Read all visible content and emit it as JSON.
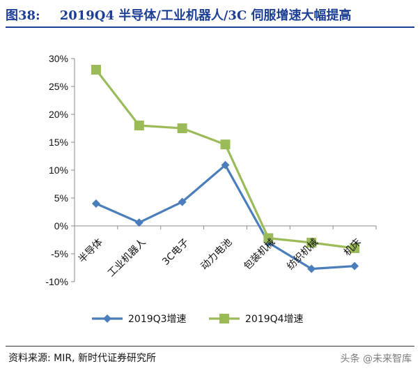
{
  "figure": {
    "label": "图38:",
    "title": "2019Q4 半导体/工业机器人/3C 伺服增速大幅提高"
  },
  "source_text": "资料来源: MIR, 新时代证券研究所",
  "watermark_text": "头条 @未来智库",
  "colors": {
    "series1": "#4a7ebb",
    "series2": "#9bbb59",
    "title": "#1c3f95"
  },
  "chart_data": {
    "type": "line",
    "title": "",
    "xlabel": "",
    "ylabel": "",
    "categories": [
      "半导体",
      "工业机器人",
      "3C电子",
      "动力电池",
      "包装机械",
      "纺织机械",
      "机床"
    ],
    "ylim": [
      -0.1,
      0.3
    ],
    "ytick_step": 0.05,
    "ytick_format": "percent",
    "grid": false,
    "legend_position": "bottom",
    "series": [
      {
        "name": "2019Q3增速",
        "marker": "diamond",
        "values": [
          0.04,
          0.006,
          0.043,
          0.109,
          -0.03,
          -0.077,
          -0.072
        ]
      },
      {
        "name": "2019Q4增速",
        "marker": "square",
        "values": [
          0.28,
          0.18,
          0.175,
          0.146,
          -0.022,
          -0.03,
          -0.04
        ]
      }
    ]
  }
}
